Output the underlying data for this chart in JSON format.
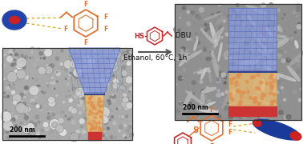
{
  "bg_color": "#ffffff",
  "arrow_text": "Ethanol, 60°C, 1h",
  "reaction_label": ",DBU",
  "scale_bar_text": "200 nm",
  "sphere_blue": "#2244aa",
  "sphere_red": "#cc2222",
  "worm_blue": "#1a3a9a",
  "worm_red": "#cc2222",
  "molecule_orange": "#e07030",
  "molecule_red": "#cc2222",
  "arrow_color": "#555555",
  "funnel_blue": "#8899dd",
  "funnel_orange": "#e8b870",
  "funnel_red": "#cc3333",
  "vial_blue": "#8899dd",
  "vial_orange": "#e8b870",
  "vial_red": "#cc3333",
  "panel_border": "#333333",
  "tem_bg": "#aaaaaa"
}
